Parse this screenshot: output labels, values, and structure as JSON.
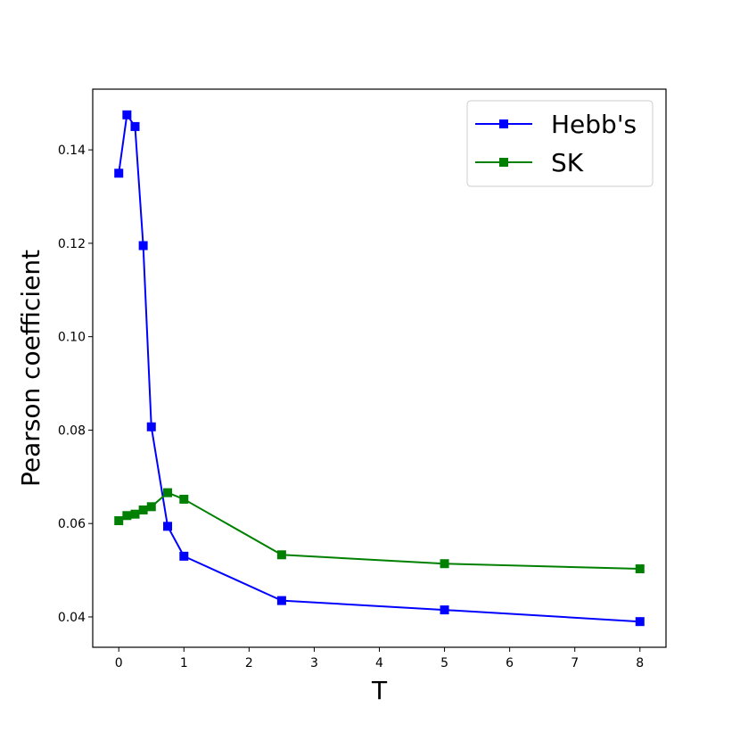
{
  "chart_data": {
    "type": "line",
    "xlabel": "T",
    "ylabel": "Pearson coefficient",
    "xlim": [
      -0.4,
      8.4
    ],
    "ylim": [
      0.0335,
      0.153
    ],
    "xticks": [
      0,
      1,
      2,
      3,
      4,
      5,
      6,
      7,
      8
    ],
    "xtick_labels": [
      "0",
      "1",
      "2",
      "3",
      "4",
      "5",
      "6",
      "7",
      "8"
    ],
    "yticks": [
      0.04,
      0.06,
      0.08,
      0.1,
      0.12,
      0.14
    ],
    "ytick_labels": [
      "0.04",
      "0.06",
      "0.08",
      "0.10",
      "0.12",
      "0.14"
    ],
    "grid": false,
    "legend_position": "top-right",
    "series": [
      {
        "name": "Hebb's",
        "color": "#0000ff",
        "marker": "square",
        "x": [
          0,
          0.125,
          0.25,
          0.375,
          0.5,
          0.75,
          1,
          2.5,
          5,
          8
        ],
        "y": [
          0.135,
          0.1475,
          0.145,
          0.1195,
          0.0807,
          0.0594,
          0.053,
          0.0435,
          0.0415,
          0.039
        ]
      },
      {
        "name": "SK",
        "color": "#008000",
        "marker": "square",
        "x": [
          0,
          0.125,
          0.25,
          0.375,
          0.5,
          0.75,
          1,
          2.5,
          5,
          8
        ],
        "y": [
          0.0606,
          0.0617,
          0.062,
          0.0629,
          0.0636,
          0.0666,
          0.0652,
          0.0533,
          0.0514,
          0.0503
        ]
      }
    ]
  }
}
